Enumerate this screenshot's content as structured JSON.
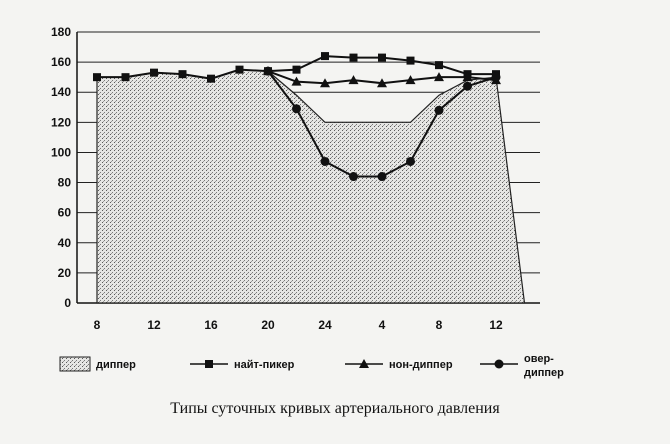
{
  "caption": "Типы суточных кривых артериального давления",
  "chart_data": {
    "type": "line",
    "title": "",
    "xlabel": "",
    "ylabel": "",
    "ylim": [
      0,
      180
    ],
    "yticks": [
      0,
      20,
      40,
      60,
      80,
      100,
      120,
      140,
      160,
      180
    ],
    "categories": [
      "8",
      "10",
      "12",
      "14",
      "16",
      "18",
      "20",
      "22",
      "24",
      "2",
      "4",
      "6",
      "8",
      "10",
      "12",
      "14"
    ],
    "x_tick_labels": [
      "8",
      "12",
      "16",
      "20",
      "24",
      "4",
      "8",
      "12"
    ],
    "grid": true,
    "legend": "bottom",
    "series": [
      {
        "name": "диппер",
        "kind": "area",
        "marker": "none",
        "values": [
          150,
          150,
          153,
          152,
          149,
          155,
          154,
          138,
          120,
          120,
          120,
          120,
          138,
          148,
          150,
          0
        ]
      },
      {
        "name": "найт-пикер",
        "kind": "line",
        "marker": "square",
        "values": [
          150,
          150,
          153,
          152,
          149,
          155,
          154,
          155,
          164,
          163,
          163,
          161,
          158,
          152,
          152,
          null
        ]
      },
      {
        "name": "нон-диппер",
        "kind": "line",
        "marker": "triangle",
        "values": [
          null,
          null,
          null,
          null,
          null,
          null,
          154,
          147,
          146,
          148,
          146,
          148,
          150,
          150,
          148,
          null
        ]
      },
      {
        "name": "овер-диппер",
        "kind": "line",
        "marker": "circle",
        "values": [
          null,
          null,
          null,
          null,
          null,
          null,
          154,
          129,
          94,
          84,
          84,
          94,
          128,
          144,
          150,
          null
        ]
      }
    ]
  }
}
